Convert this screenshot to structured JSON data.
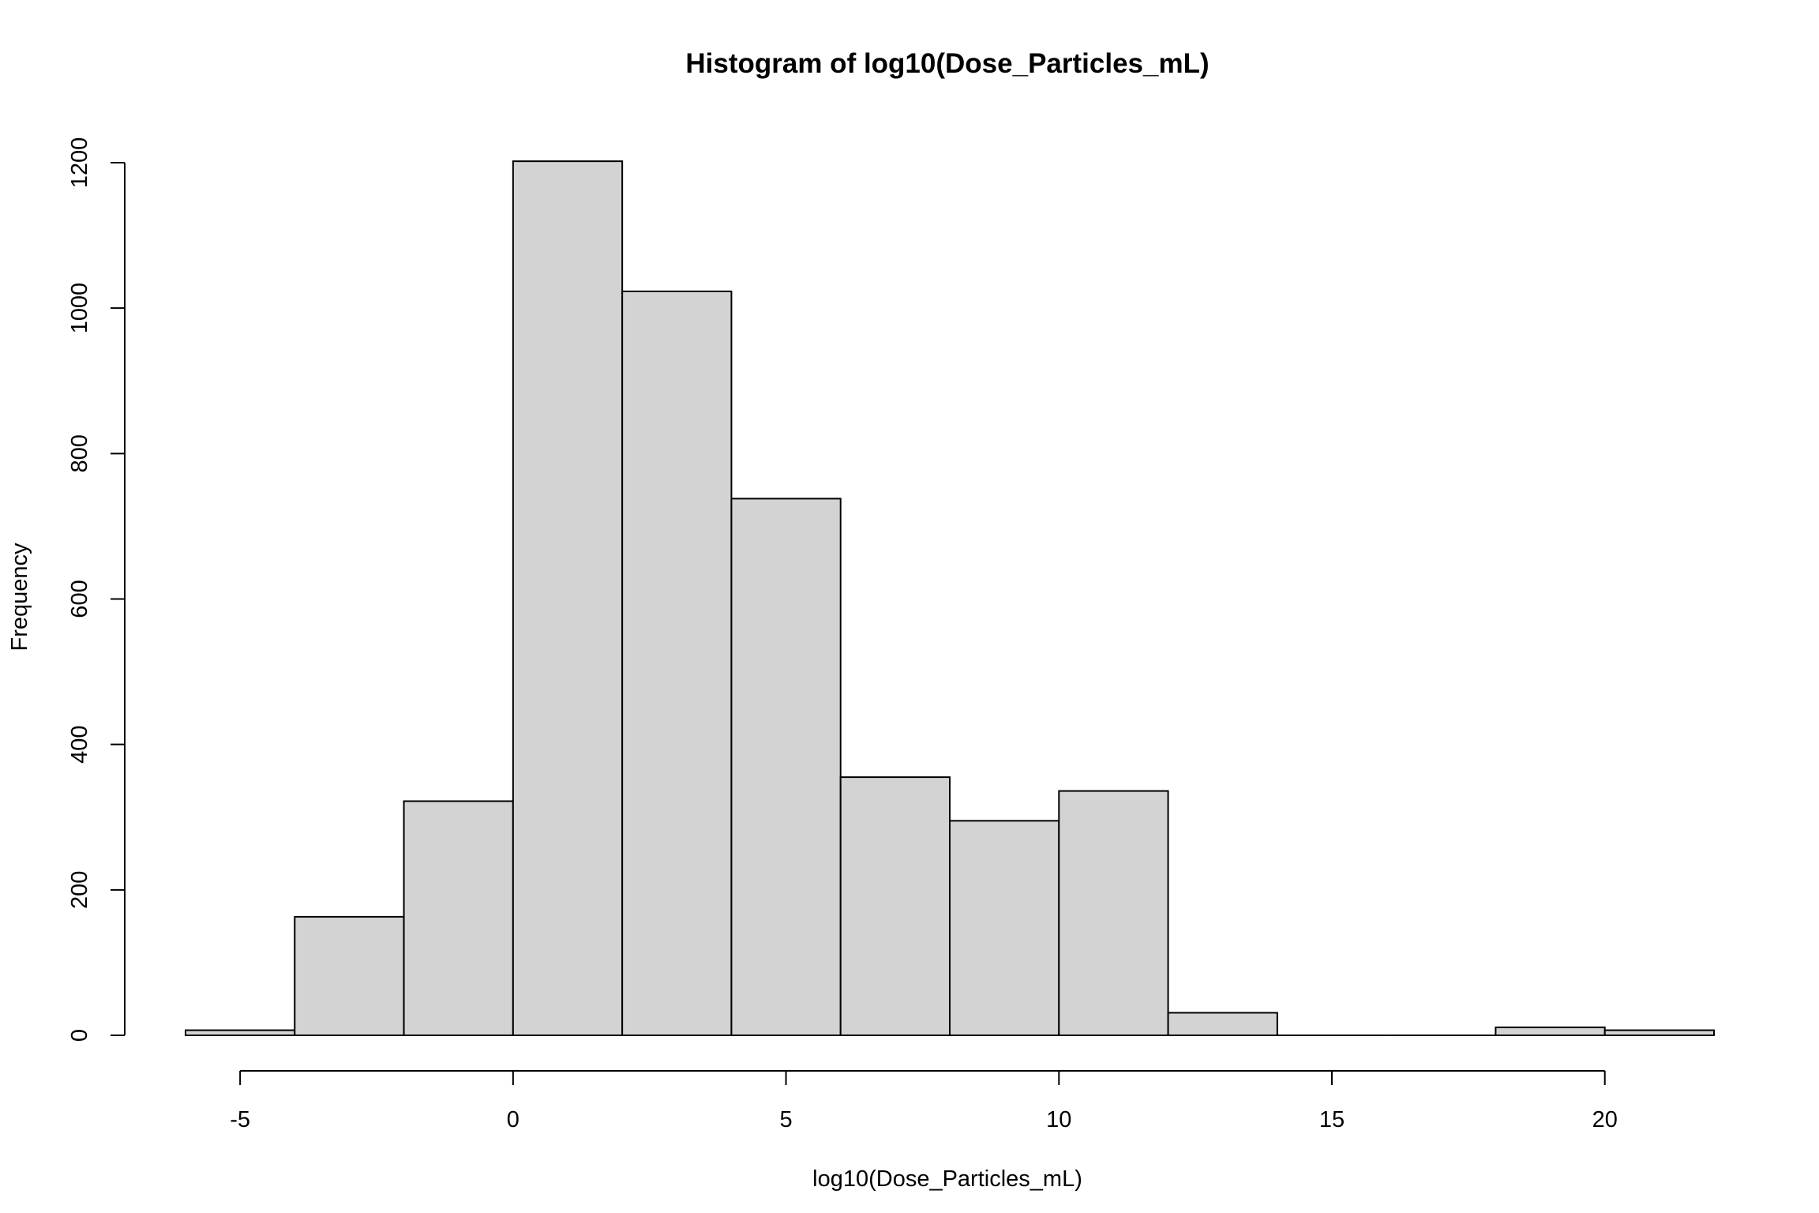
{
  "chart_data": {
    "type": "bar",
    "title": "Histogram of log10(Dose_Particles_mL)",
    "xlabel": "log10(Dose_Particles_mL)",
    "ylabel": "Frequency",
    "bin_edges": [
      -6,
      -4,
      -2,
      0,
      2,
      4,
      6,
      8,
      10,
      12,
      14,
      16,
      18,
      20,
      22
    ],
    "values": [
      7,
      163,
      322,
      1202,
      1023,
      738,
      355,
      295,
      336,
      31,
      0,
      0,
      11,
      7
    ],
    "xlim": [
      -6,
      22
    ],
    "ylim": [
      0,
      1200
    ],
    "x_ticks": [
      -5,
      0,
      5,
      10,
      15,
      20
    ],
    "y_ticks": [
      0,
      200,
      400,
      600,
      800,
      1000,
      1200
    ],
    "grid": false,
    "legend": "none",
    "bar_fill": "#d3d3d3",
    "bar_edge": "#000000"
  }
}
